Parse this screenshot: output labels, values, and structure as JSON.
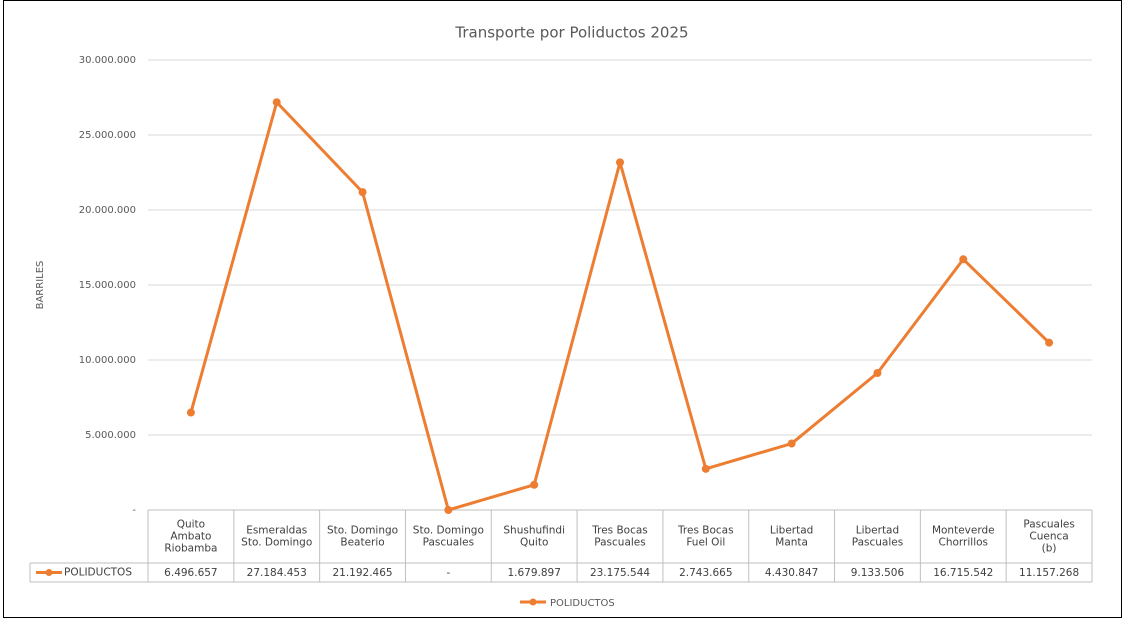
{
  "chart_data": {
    "type": "line",
    "title": "Transporte por Poliductos 2025",
    "ylabel": "BARRILES",
    "categories": [
      [
        "Quito",
        "Ambato",
        "Riobamba"
      ],
      [
        "Esmeraldas",
        "Sto. Domingo"
      ],
      [
        "Sto. Domingo",
        "Beaterio"
      ],
      [
        "Sto. Domingo",
        "Pascuales"
      ],
      [
        "Shushufindi",
        "Quito"
      ],
      [
        "Tres Bocas",
        "Pascuales"
      ],
      [
        "Tres Bocas",
        "Fuel Oil"
      ],
      [
        "Libertad",
        "Manta"
      ],
      [
        "Libertad",
        "Pascuales"
      ],
      [
        "Monteverde",
        "Chorrillos"
      ],
      [
        "Pascuales",
        "Cuenca",
        "(b)"
      ]
    ],
    "series": [
      {
        "name": "POLIDUCTOS",
        "color": "#ed7d31",
        "values": [
          6496657,
          27184453,
          21192465,
          0,
          1679897,
          23175544,
          2743665,
          4430847,
          9133506,
          16715542,
          11157268
        ],
        "value_labels": [
          "6.496.657",
          "27.184.453",
          "21.192.465",
          "-",
          "1.679.897",
          "23.175.544",
          "2.743.665",
          "4.430.847",
          "9.133.506",
          "16.715.542",
          "11.157.268"
        ]
      }
    ],
    "ylim": [
      0,
      30000000
    ],
    "yticks": [
      {
        "value": 0,
        "label": "-"
      },
      {
        "value": 5000000,
        "label": "5.000.000"
      },
      {
        "value": 10000000,
        "label": "10.000.000"
      },
      {
        "value": 15000000,
        "label": "15.000.000"
      },
      {
        "value": 20000000,
        "label": "20.000.000"
      },
      {
        "value": 25000000,
        "label": "25.000.000"
      },
      {
        "value": 30000000,
        "label": "30.000.000"
      }
    ],
    "grid": true,
    "legend": "bottom"
  }
}
